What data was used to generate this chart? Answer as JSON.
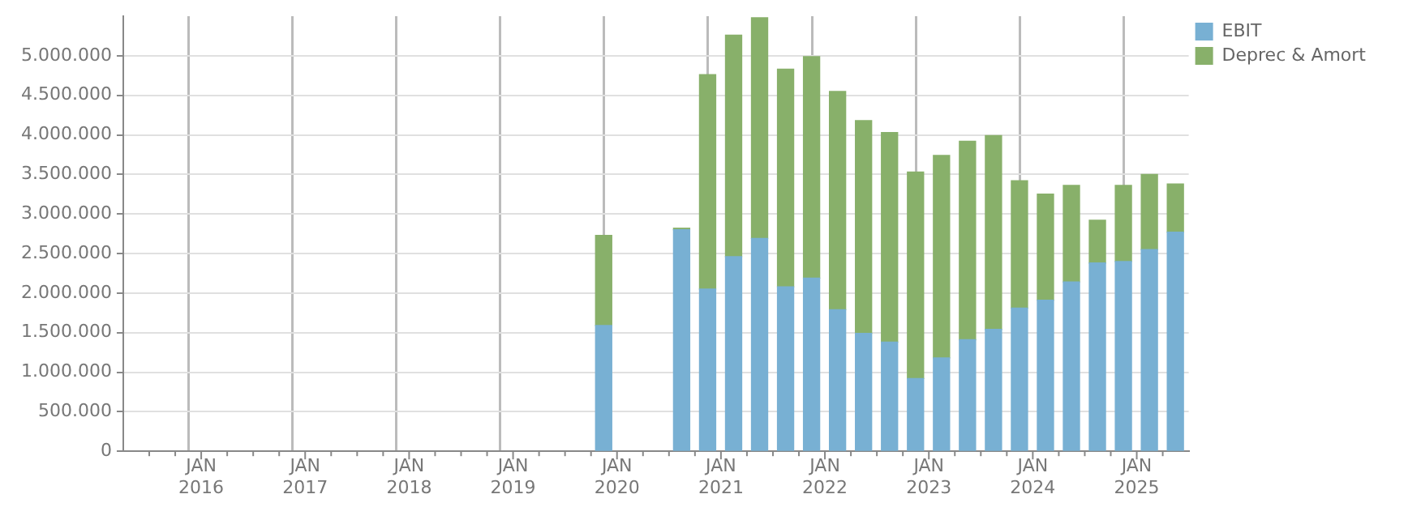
{
  "chart_data": {
    "type": "bar",
    "stacked": true,
    "grid": true,
    "legend": "top right",
    "x": [
      "2019-11-15",
      "2020-08-15",
      "2020-11-15",
      "2021-02-15",
      "2021-05-15",
      "2021-08-15",
      "2021-11-15",
      "2022-02-15",
      "2022-05-15",
      "2022-08-15",
      "2022-11-15",
      "2023-02-15",
      "2023-05-15",
      "2023-08-15",
      "2023-11-15",
      "2024-02-15",
      "2024-05-15",
      "2024-08-15",
      "2024-11-15",
      "2025-02-15",
      "2025-05-15"
    ],
    "series": [
      {
        "name": "EBIT",
        "color": "#78b0d3",
        "values": [
          1590000,
          2800000,
          2050000,
          2460000,
          2690000,
          2080000,
          2190000,
          1790000,
          1490000,
          1380000,
          920000,
          1180000,
          1410000,
          1540000,
          1810000,
          1910000,
          2140000,
          2380000,
          2400000,
          2550000,
          2770000
        ]
      },
      {
        "name": "Deprec & Amort",
        "color": "#88b06a",
        "values": [
          1140000,
          20000,
          2710000,
          2800000,
          2790000,
          2750000,
          2800000,
          2760000,
          2690000,
          2650000,
          2610000,
          2560000,
          2510000,
          2450000,
          1610000,
          1340000,
          1220000,
          540000,
          960000,
          950000,
          610000
        ]
      }
    ],
    "ylim": [
      0,
      5500000
    ],
    "yticks": [
      0,
      {
        "value": 500000,
        "label": "500.000"
      },
      {
        "value": 1000000,
        "label": "1.000.000"
      },
      {
        "value": 1500000,
        "label": "1.500.000"
      },
      {
        "value": 2000000,
        "label": "2.000.000"
      },
      {
        "value": 2500000,
        "label": "2.500.000"
      },
      {
        "value": 3000000,
        "label": "3.000.000"
      },
      {
        "value": 3500000,
        "label": "3.500.000"
      },
      {
        "value": 4000000,
        "label": "4.000.000"
      },
      {
        "value": 4500000,
        "label": "4.500.000"
      },
      {
        "value": 5000000,
        "label": "5.000.000"
      }
    ],
    "xlim": [
      "2015-04",
      "2025-07"
    ],
    "xticks": [
      {
        "value": "2015-07",
        "label": null
      },
      {
        "value": "2015-10",
        "label": null
      },
      {
        "value": "2016-01",
        "label": "JAN 2016"
      },
      {
        "value": "2016-04",
        "label": null
      },
      {
        "value": "2016-07",
        "label": null
      },
      {
        "value": "2016-10",
        "label": null
      },
      {
        "value": "2017-01",
        "label": "JAN 2017"
      },
      {
        "value": "2017-04",
        "label": null
      },
      {
        "value": "2017-07",
        "label": null
      },
      {
        "value": "2017-10",
        "label": null
      },
      {
        "value": "2018-01",
        "label": "JAN 2018"
      },
      {
        "value": "2018-04",
        "label": null
      },
      {
        "value": "2018-07",
        "label": null
      },
      {
        "value": "2018-10",
        "label": null
      },
      {
        "value": "2019-01",
        "label": "JAN 2019"
      },
      {
        "value": "2019-04",
        "label": null
      },
      {
        "value": "2019-07",
        "label": null
      },
      {
        "value": "2019-10",
        "label": null
      },
      {
        "value": "2020-01",
        "label": "JAN 2020"
      },
      {
        "value": "2020-04",
        "label": null
      },
      {
        "value": "2020-07",
        "label": null
      },
      {
        "value": "2020-10",
        "label": null
      },
      {
        "value": "2021-01",
        "label": "JAN 2021"
      },
      {
        "value": "2021-04",
        "label": null
      },
      {
        "value": "2021-07",
        "label": null
      },
      {
        "value": "2021-10",
        "label": null
      },
      {
        "value": "2022-01",
        "label": "JAN 2022"
      },
      {
        "value": "2022-04",
        "label": null
      },
      {
        "value": "2022-07",
        "label": null
      },
      {
        "value": "2022-10",
        "label": null
      },
      {
        "value": "2023-01",
        "label": "JAN 2023"
      },
      {
        "value": "2023-04",
        "label": null
      },
      {
        "value": "2023-07",
        "label": null
      },
      {
        "value": "2023-10",
        "label": null
      },
      {
        "value": "2024-01",
        "label": "JAN 2024"
      },
      {
        "value": "2024-04",
        "label": null
      },
      {
        "value": "2024-07",
        "label": null
      },
      {
        "value": "2024-10",
        "label": null
      },
      {
        "value": "2025-01",
        "label": "JAN 2025"
      },
      {
        "value": "2025-04",
        "label": null
      }
    ]
  }
}
